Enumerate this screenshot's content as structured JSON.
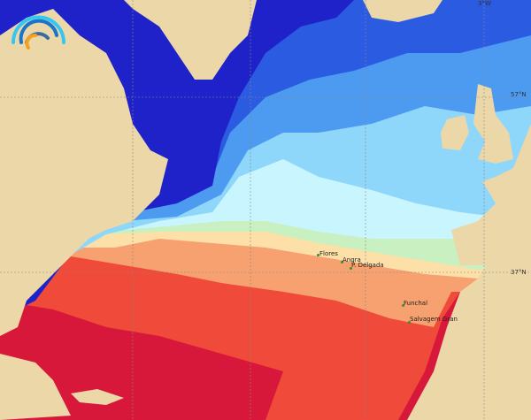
{
  "map": {
    "type": "sea-surface-temperature",
    "colors": {
      "land": "#ecd7a8",
      "coldest": "#1f22c8",
      "cold": "#2a5be0",
      "cool": "#4d9bf0",
      "mild": "#8fd6fb",
      "cool_light": "#c9f5ff",
      "neutral": "#c8f0c0",
      "warm_light": "#fde0a8",
      "warm": "#f7a070",
      "hot": "#ef4a3a",
      "hottest": "#d8183a"
    },
    "grid_labels": {
      "lon_top": "3°W",
      "lat_upper": "57°N",
      "lat_lower": "37°N"
    },
    "places": [
      {
        "name": "Flores"
      },
      {
        "name": "Angra"
      },
      {
        "name": "P. Delgada"
      },
      {
        "name": "Funchal"
      },
      {
        "name": "Salvagem Gran"
      }
    ],
    "logo": {
      "icon": "rainbow-wave-logo"
    }
  }
}
